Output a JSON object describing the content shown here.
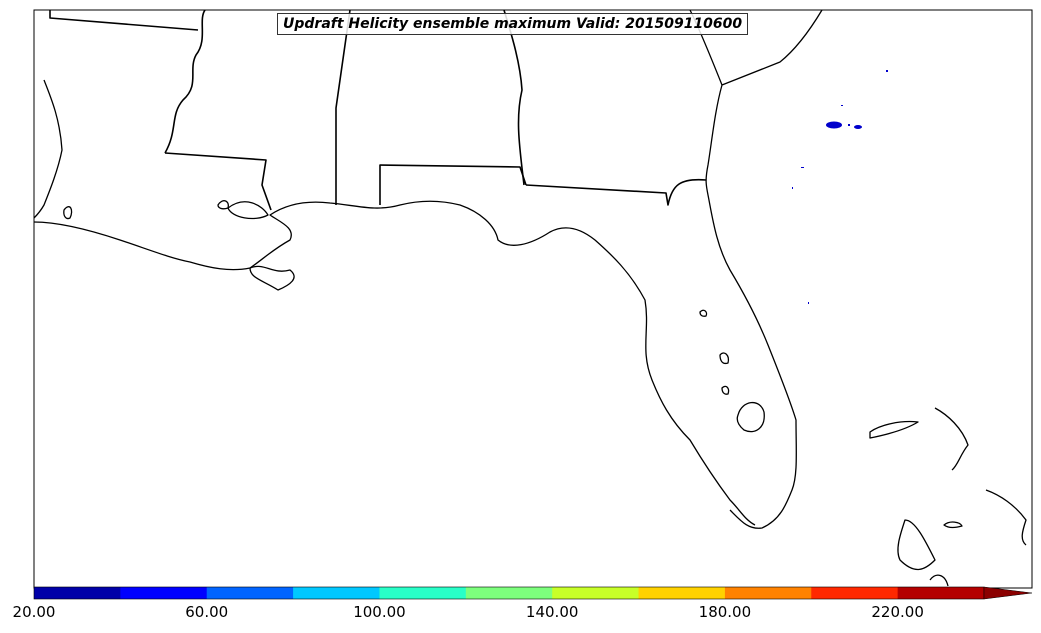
{
  "title": "Updraft Helicity ensemble maximum Valid: 201509110600",
  "colorbar": {
    "colors": [
      "#0000a8",
      "#0000ff",
      "#0064ff",
      "#00c8ff",
      "#28ffc8",
      "#7dff7d",
      "#c8ff28",
      "#ffd200",
      "#ff8200",
      "#ff2800",
      "#b40000"
    ],
    "extend_color": "#8b0000",
    "tick_labels": [
      "20.00",
      "60.00",
      "100.00",
      "140.00",
      "180.00",
      "220.00"
    ]
  },
  "features": {
    "helicity_blob_color": "#0000cc",
    "land_line_color": "#000000"
  }
}
